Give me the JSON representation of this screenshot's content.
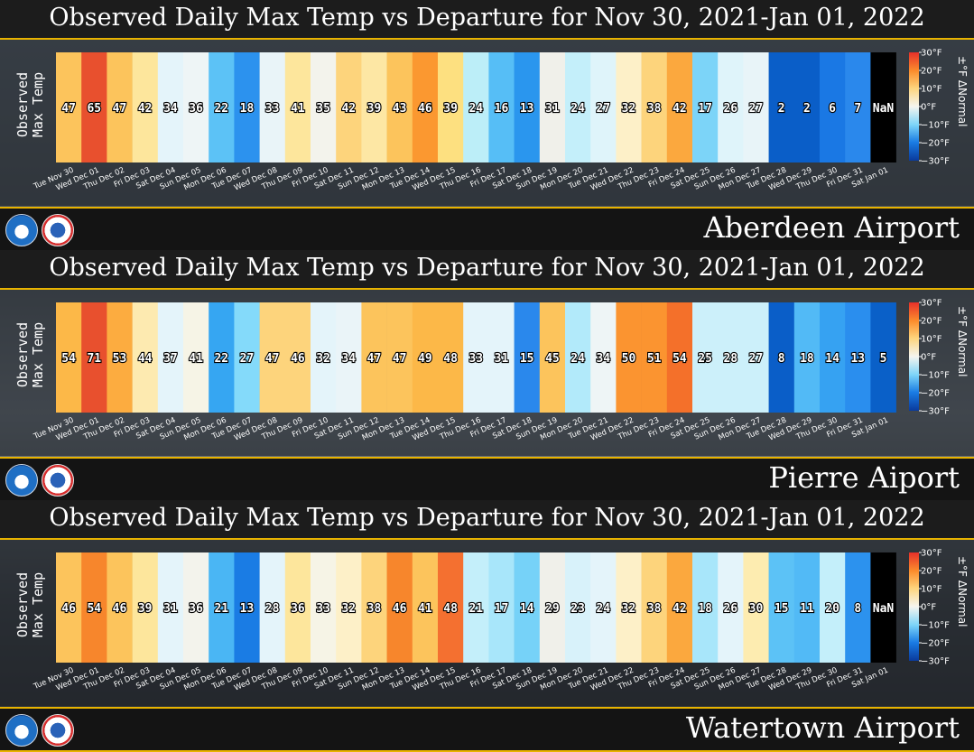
{
  "ylabel_lines": [
    "Observed",
    "Max Temp"
  ],
  "legend": {
    "title": "±°F ΔNormal",
    "ticks": [
      "30°F",
      "20°F",
      "10°F",
      "0°F",
      "−10°F",
      "−20°F",
      "−30°F"
    ],
    "tick_values": [
      30,
      20,
      10,
      0,
      -10,
      -20,
      -30
    ]
  },
  "dates": [
    "Tue Nov 30",
    "Wed Dec 01",
    "Thu Dec 02",
    "Fri Dec 03",
    "Sat Dec 04",
    "Sun Dec 05",
    "Mon Dec 06",
    "Tue Dec 07",
    "Wed Dec 08",
    "Thu Dec 09",
    "Fri Dec 10",
    "Sat Dec 11",
    "Sun Dec 12",
    "Mon Dec 13",
    "Tue Dec 14",
    "Wed Dec 15",
    "Thu Dec 16",
    "Fri Dec 17",
    "Sat Dec 18",
    "Sun Dec 19",
    "Mon Dec 20",
    "Tue Dec 21",
    "Wed Dec 22",
    "Thu Dec 23",
    "Fri Dec 24",
    "Sat Dec 25",
    "Sun Dec 26",
    "Mon Dec 27",
    "Tue Dec 28",
    "Wed Dec 29",
    "Thu Dec 30",
    "Fri Dec 31",
    "Sat Jan 01"
  ],
  "chart_data": [
    {
      "type": "heatmap",
      "title": "Observed Daily Max Temp vs Departure for Nov 30, 2021-Jan 01, 2022",
      "station": "Aberdeen Airport",
      "values": [
        "47",
        "65",
        "47",
        "42",
        "34",
        "36",
        "22",
        "18",
        "33",
        "41",
        "35",
        "42",
        "39",
        "43",
        "46",
        "39",
        "24",
        "16",
        "13",
        "31",
        "24",
        "27",
        "32",
        "38",
        "42",
        "17",
        "26",
        "27",
        "2",
        "2",
        "6",
        "7",
        "NaN"
      ],
      "colors": [
        "#fcc45c",
        "#e8502e",
        "#fcc45c",
        "#fde69c",
        "#e4f4fa",
        "#eef5f6",
        "#5cc2f6",
        "#2c92ee",
        "#e9f4f8",
        "#fde69c",
        "#f3f3ec",
        "#fdd47c",
        "#fde7a4",
        "#fcc45c",
        "#fb9830",
        "#fde080",
        "#bceef8",
        "#56bef6",
        "#2a96ee",
        "#f0f0ea",
        "#c4effa",
        "#dff4fa",
        "#fdf0c8",
        "#fdd47c",
        "#fba83e",
        "#7cd4f8",
        "#dff4fa",
        "#e8f4f8",
        "#0a5ec8",
        "#0a5ec8",
        "#1a78e4",
        "#2a88ec",
        "#000000"
      ]
    },
    {
      "type": "heatmap",
      "title": "Observed Daily Max Temp vs Departure for Nov 30, 2021-Jan 01, 2022",
      "station": "Pierre Aiport",
      "values": [
        "54",
        "71",
        "53",
        "44",
        "37",
        "41",
        "22",
        "27",
        "47",
        "46",
        "32",
        "34",
        "47",
        "47",
        "49",
        "48",
        "33",
        "31",
        "15",
        "45",
        "24",
        "34",
        "50",
        "51",
        "54",
        "25",
        "28",
        "27",
        "8",
        "18",
        "14",
        "13",
        "5"
      ],
      "colors": [
        "#fcb848",
        "#e8502e",
        "#fcac40",
        "#fdeab0",
        "#e4f4fa",
        "#f6f4e6",
        "#36a6f2",
        "#84dafa",
        "#fdd47c",
        "#fdd47c",
        "#e4f4fa",
        "#eaf4f8",
        "#fcc45c",
        "#fcc45c",
        "#fcb848",
        "#fcb848",
        "#e4f4fa",
        "#e4f4fa",
        "#2a88ec",
        "#fcc45c",
        "#b2eafa",
        "#eef5f6",
        "#fb9430",
        "#fb9430",
        "#f4702a",
        "#ccf0fa",
        "#ccf0fa",
        "#ccf0fa",
        "#0a5ec8",
        "#52baf6",
        "#36a2f2",
        "#2a8eee",
        "#0a60c8"
      ]
    },
    {
      "type": "heatmap",
      "title": "Observed Daily Max Temp vs Departure for Nov 30, 2021-Jan 01, 2022",
      "station": "Watertown Airport",
      "values": [
        "46",
        "54",
        "46",
        "39",
        "31",
        "36",
        "21",
        "13",
        "28",
        "36",
        "33",
        "32",
        "38",
        "46",
        "41",
        "48",
        "21",
        "17",
        "14",
        "29",
        "23",
        "24",
        "32",
        "38",
        "42",
        "18",
        "26",
        "30",
        "15",
        "11",
        "20",
        "8",
        "NaN"
      ],
      "colors": [
        "#fcc45c",
        "#f7862c",
        "#fcc45c",
        "#fde69c",
        "#e4f4fa",
        "#f3f3ec",
        "#4ab6f4",
        "#1a7ce4",
        "#e4f4fa",
        "#fde69c",
        "#f6f4e6",
        "#fdf0c8",
        "#fdd47c",
        "#f7862c",
        "#fcc45c",
        "#f47030",
        "#c4effa",
        "#a8e6fa",
        "#76d2f8",
        "#f0f0ea",
        "#d8f2fa",
        "#e4f4fa",
        "#fdf0c8",
        "#fdd47c",
        "#fba83e",
        "#a8e6fa",
        "#e4f4fa",
        "#fdecb0",
        "#5cc2f6",
        "#52baf6",
        "#c4effa",
        "#2c92ee",
        "#000000"
      ]
    }
  ]
}
